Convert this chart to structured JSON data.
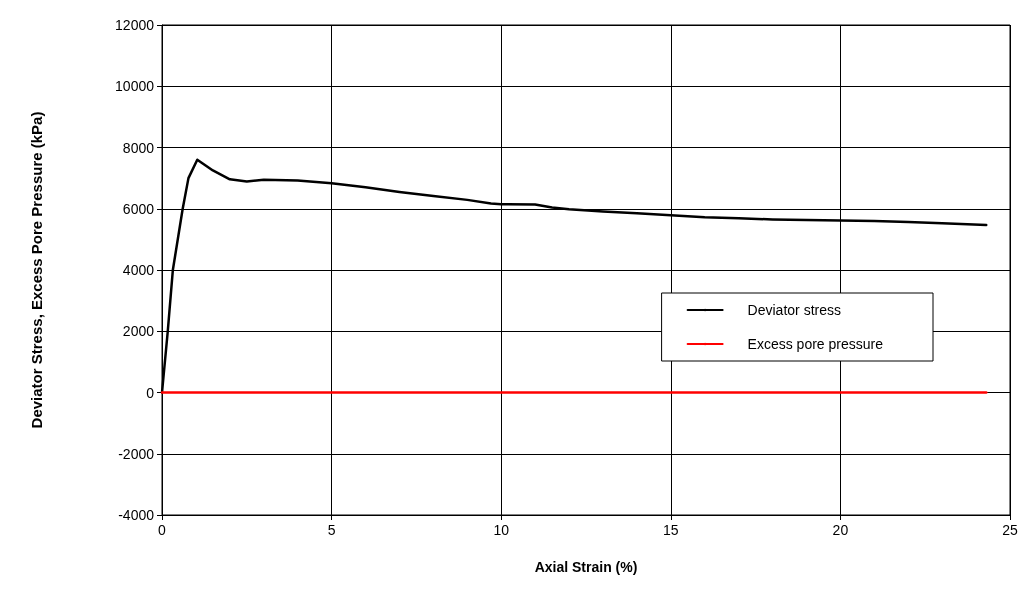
{
  "chart_data": {
    "type": "line",
    "xlabel": "Axial Strain (%)",
    "ylabel": "Deviator Stress, Excess Pore Pressure (kPa)",
    "xlim": [
      0,
      25
    ],
    "xticks": [
      0,
      5,
      10,
      15,
      20,
      25
    ],
    "ylim": [
      -4000,
      12000
    ],
    "yticks": [
      -4000,
      -2000,
      0,
      2000,
      4000,
      6000,
      8000,
      10000,
      12000
    ],
    "grid": true,
    "legend": "right",
    "marker": "none",
    "line_style": "solid",
    "series": [
      {
        "name": "Deviator stress",
        "color": "#000000",
        "x": [
          0,
          0.17,
          0.32,
          0.61,
          0.78,
          1.04,
          1.5,
          2,
          2.5,
          3,
          4,
          5,
          6,
          7,
          8,
          9,
          9.7,
          10,
          11,
          11.5,
          12,
          13,
          14,
          15,
          16,
          17,
          18,
          19,
          20,
          21,
          22,
          23,
          24.3
        ],
        "values": [
          0,
          2000,
          4000,
          6000,
          7000,
          7600,
          7250,
          6960,
          6890,
          6950,
          6920,
          6830,
          6700,
          6550,
          6420,
          6290,
          6170,
          6150,
          6140,
          6040,
          5980,
          5910,
          5850,
          5790,
          5720,
          5690,
          5650,
          5630,
          5620,
          5600,
          5570,
          5530,
          5470
        ]
      },
      {
        "name": "Excess pore pressure",
        "color": "#ff0000",
        "x": [
          0,
          5,
          10,
          15,
          20,
          24.3
        ],
        "values": [
          0,
          0,
          0,
          0,
          0,
          0
        ]
      }
    ]
  }
}
